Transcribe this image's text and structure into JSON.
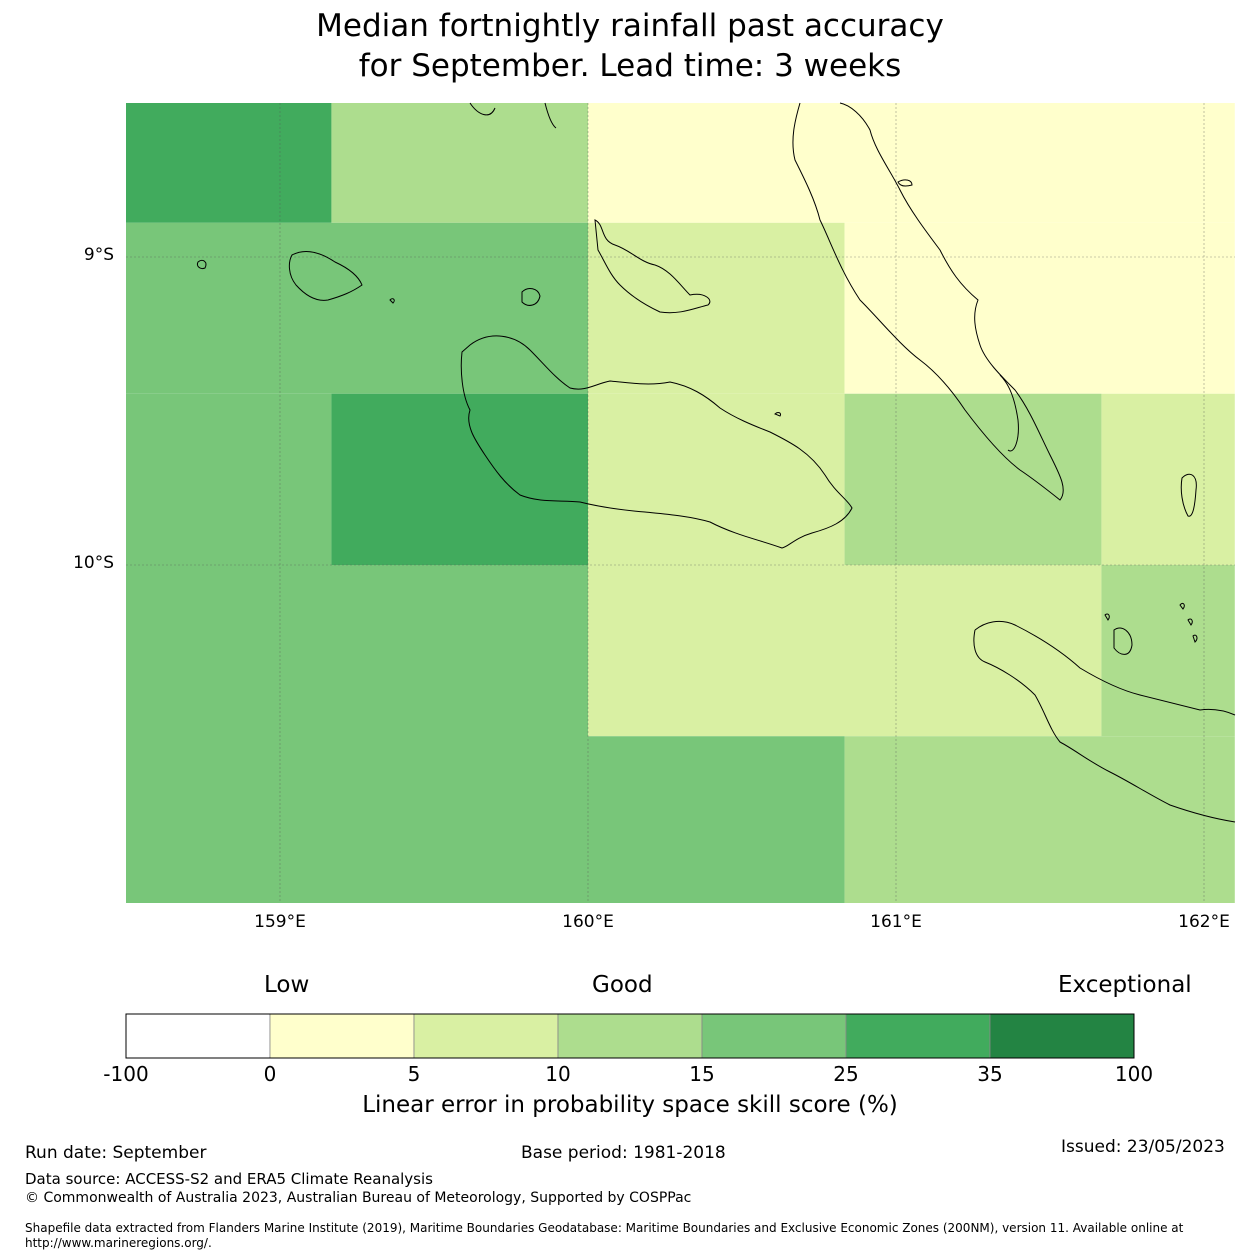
{
  "title_line1": "Median fortnightly rainfall past accuracy",
  "title_line2": "for September. Lead time: 3 weeks",
  "map": {
    "lat_labels": [
      "9°S",
      "10°S"
    ],
    "lon_labels": [
      "159°E",
      "160°E",
      "161°E",
      "162°E"
    ],
    "cells": [
      {
        "lon0": 158.5,
        "lon1": 159.167,
        "lat_n": -8.5,
        "lat_s": -8.889,
        "score": 30
      },
      {
        "lon0": 159.167,
        "lon1": 160.0,
        "lat_n": -8.5,
        "lat_s": -8.889,
        "score": 12
      },
      {
        "lon0": 160.0,
        "lon1": 162.1,
        "lat_n": -8.5,
        "lat_s": -8.889,
        "score": 2
      },
      {
        "lon0": 158.5,
        "lon1": 160.0,
        "lat_n": -8.889,
        "lat_s": -9.444,
        "score": 20
      },
      {
        "lon0": 160.0,
        "lon1": 160.833,
        "lat_n": -8.889,
        "lat_s": -9.444,
        "score": 7
      },
      {
        "lon0": 160.833,
        "lon1": 162.1,
        "lat_n": -8.889,
        "lat_s": -9.444,
        "score": 2
      },
      {
        "lon0": 158.5,
        "lon1": 159.167,
        "lat_n": -9.444,
        "lat_s": -10.0,
        "score": 20
      },
      {
        "lon0": 159.167,
        "lon1": 160.0,
        "lat_n": -9.444,
        "lat_s": -10.0,
        "score": 30
      },
      {
        "lon0": 160.0,
        "lon1": 160.833,
        "lat_n": -9.444,
        "lat_s": -10.0,
        "score": 7
      },
      {
        "lon0": 160.833,
        "lon1": 161.667,
        "lat_n": -9.444,
        "lat_s": -10.0,
        "score": 12
      },
      {
        "lon0": 161.667,
        "lon1": 162.1,
        "lat_n": -9.444,
        "lat_s": -10.0,
        "score": 7
      },
      {
        "lon0": 158.5,
        "lon1": 160.0,
        "lat_n": -10.0,
        "lat_s": -11.1,
        "score": 20
      },
      {
        "lon0": 160.0,
        "lon1": 161.667,
        "lat_n": -10.0,
        "lat_s": -10.556,
        "score": 7
      },
      {
        "lon0": 161.667,
        "lon1": 162.1,
        "lat_n": -10.0,
        "lat_s": -10.556,
        "score": 12
      },
      {
        "lon0": 160.0,
        "lon1": 160.833,
        "lat_n": -10.556,
        "lat_s": -11.1,
        "score": 20
      },
      {
        "lon0": 160.833,
        "lon1": 162.1,
        "lat_n": -10.556,
        "lat_s": -11.1,
        "score": 12
      }
    ]
  },
  "colorbar": {
    "category_labels": [
      "Low",
      "Good",
      "Exceptional"
    ],
    "tick_labels": [
      "-100",
      "0",
      "5",
      "10",
      "15",
      "25",
      "35",
      "100"
    ],
    "colors": [
      "#ffffff",
      "#ffffcc",
      "#d9f0a3",
      "#addd8e",
      "#78c679",
      "#41ab5d",
      "#238443"
    ],
    "title": "Linear error in probability space skill score (%)"
  },
  "footer": {
    "run_date": "Run date: September",
    "base_period": "Base period: 1981-2018",
    "issued": "Issued: 23/05/2023",
    "data_source": "Data source: ACCESS-S2 and ERA5 Climate Reanalysis",
    "copyright": "© Commonwealth of Australia 2023, Australian Bureau of Meteorology, Supported by COSPPac",
    "shapefile": "Shapefile data extracted from Flanders Marine Institute (2019), Maritime Boundaries Geodatabase: Maritime Boundaries and Exclusive Economic Zones (200NM), version 11. Available online at http://www.marineregions.org/."
  }
}
